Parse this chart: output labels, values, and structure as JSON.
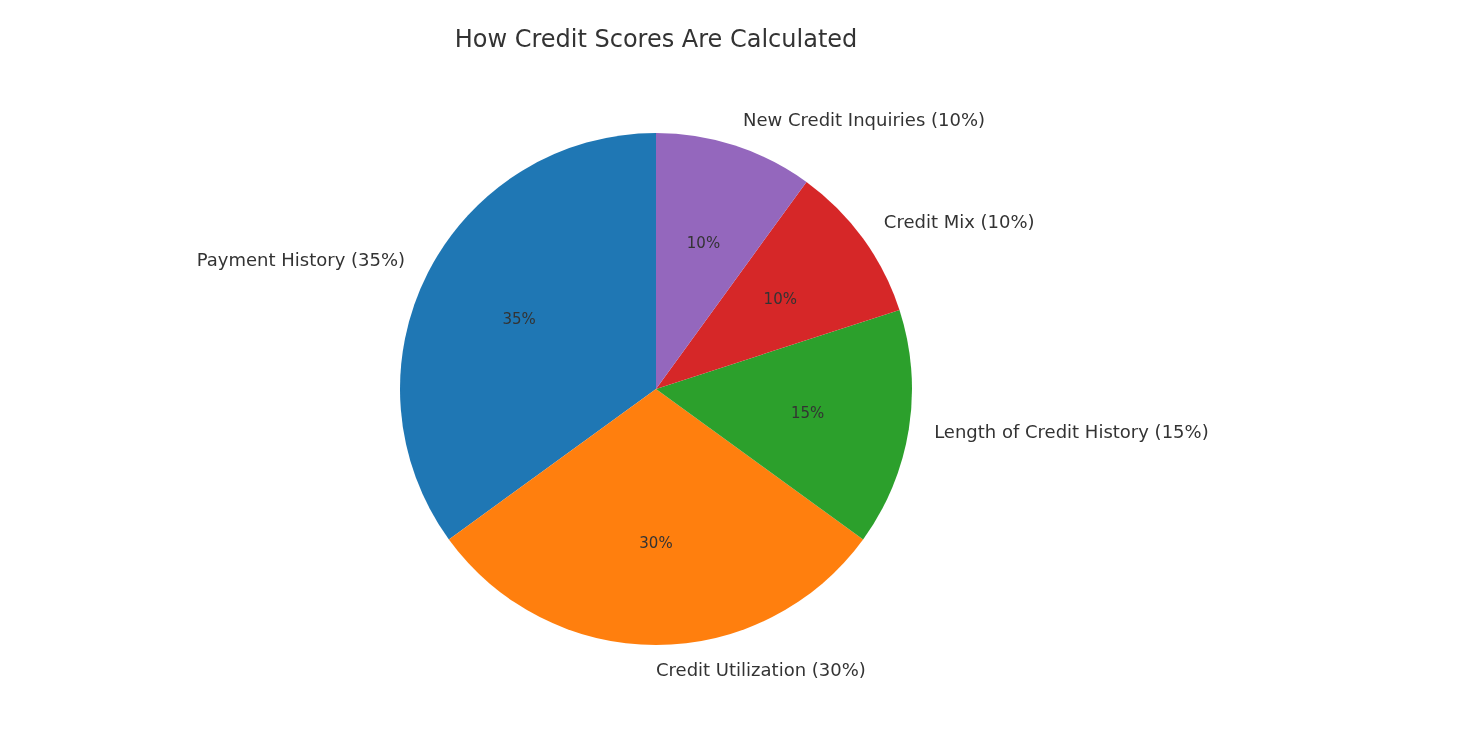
{
  "chart_data": {
    "type": "pie",
    "title": "How Credit Scores Are Calculated",
    "categories": [
      "Payment History (35%)",
      "Credit Utilization (30%)",
      "Length of Credit History (15%)",
      "Credit Mix (10%)",
      "New Credit Inquiries (10%)"
    ],
    "values": [
      35,
      30,
      15,
      10,
      10
    ],
    "colors": [
      "#1f77b4",
      "#ff7f0e",
      "#2ca02c",
      "#d62728",
      "#9467bd"
    ],
    "value_labels": [
      "35%",
      "30%",
      "15%",
      "10%",
      "10%"
    ]
  }
}
